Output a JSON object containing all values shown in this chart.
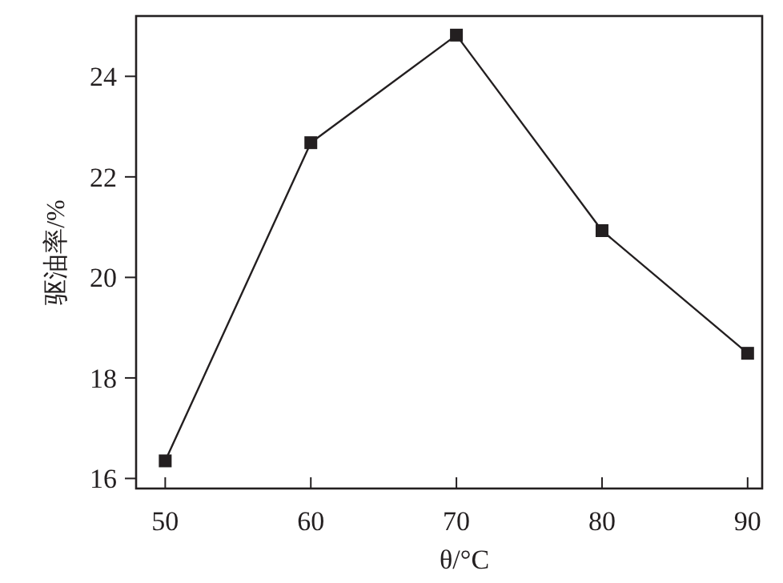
{
  "chart_data": {
    "type": "line",
    "xlabel": "θ/°C",
    "ylabel": "驱油率/%",
    "x": [
      50,
      60,
      70,
      80,
      90
    ],
    "series": [
      {
        "color": "#231f20",
        "values": [
          16.35,
          22.68,
          24.82,
          20.93,
          18.49
        ]
      }
    ],
    "xlim": [
      48,
      91
    ],
    "ylim": [
      15.8,
      25.2
    ],
    "xticks": [
      50,
      60,
      70,
      80,
      90
    ],
    "yticks": [
      16,
      18,
      20,
      22,
      24
    ],
    "marker": "square",
    "line_style": "solid",
    "grid": false
  }
}
